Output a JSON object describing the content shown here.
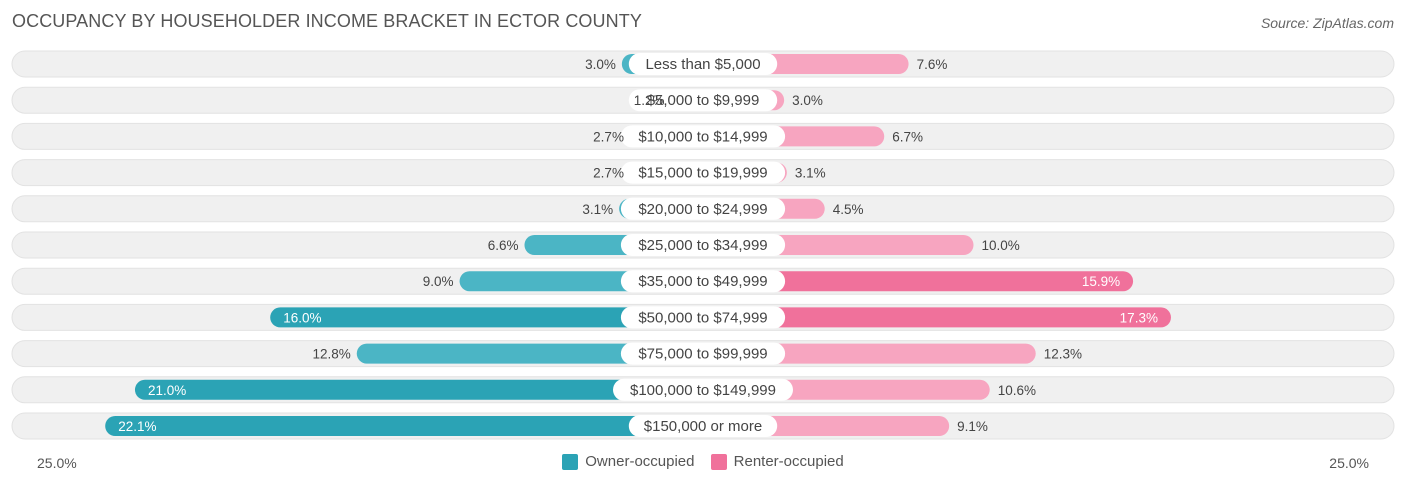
{
  "title": "OCCUPANCY BY HOUSEHOLDER INCOME BRACKET IN ECTOR COUNTY",
  "source": "Source: ZipAtlas.com",
  "colors": {
    "owner": "#4bb5c5",
    "owner_dark": "#2ba3b5",
    "renter": "#f7a5c0",
    "renter_dark": "#f0719b",
    "row_bg": "#f0f0f0"
  },
  "chart_data": {
    "type": "bar",
    "orientation": "horizontal-diverging",
    "categories": [
      "Less than $5,000",
      "$5,000 to $9,999",
      "$10,000 to $14,999",
      "$15,000 to $19,999",
      "$20,000 to $24,999",
      "$25,000 to $34,999",
      "$35,000 to $49,999",
      "$50,000 to $74,999",
      "$75,000 to $99,999",
      "$100,000 to $149,999",
      "$150,000 or more"
    ],
    "series": [
      {
        "name": "Owner-occupied",
        "values": [
          3.0,
          1.2,
          2.7,
          2.7,
          3.1,
          6.6,
          9.0,
          16.0,
          12.8,
          21.0,
          22.1
        ]
      },
      {
        "name": "Renter-occupied",
        "values": [
          7.6,
          3.0,
          6.7,
          3.1,
          4.5,
          10.0,
          15.9,
          17.3,
          12.3,
          10.6,
          9.1
        ]
      }
    ],
    "value_labels": {
      "owner": [
        "3.0%",
        "1.2%",
        "2.7%",
        "2.7%",
        "3.1%",
        "6.6%",
        "9.0%",
        "16.0%",
        "12.8%",
        "21.0%",
        "22.1%"
      ],
      "renter": [
        "7.6%",
        "3.0%",
        "6.7%",
        "3.1%",
        "4.5%",
        "10.0%",
        "15.9%",
        "17.3%",
        "12.3%",
        "10.6%",
        "9.1%"
      ]
    },
    "axis_max": 25.0,
    "axis_labels": {
      "left": "25.0%",
      "right": "25.0%"
    },
    "legend": [
      "Owner-occupied",
      "Renter-occupied"
    ]
  }
}
